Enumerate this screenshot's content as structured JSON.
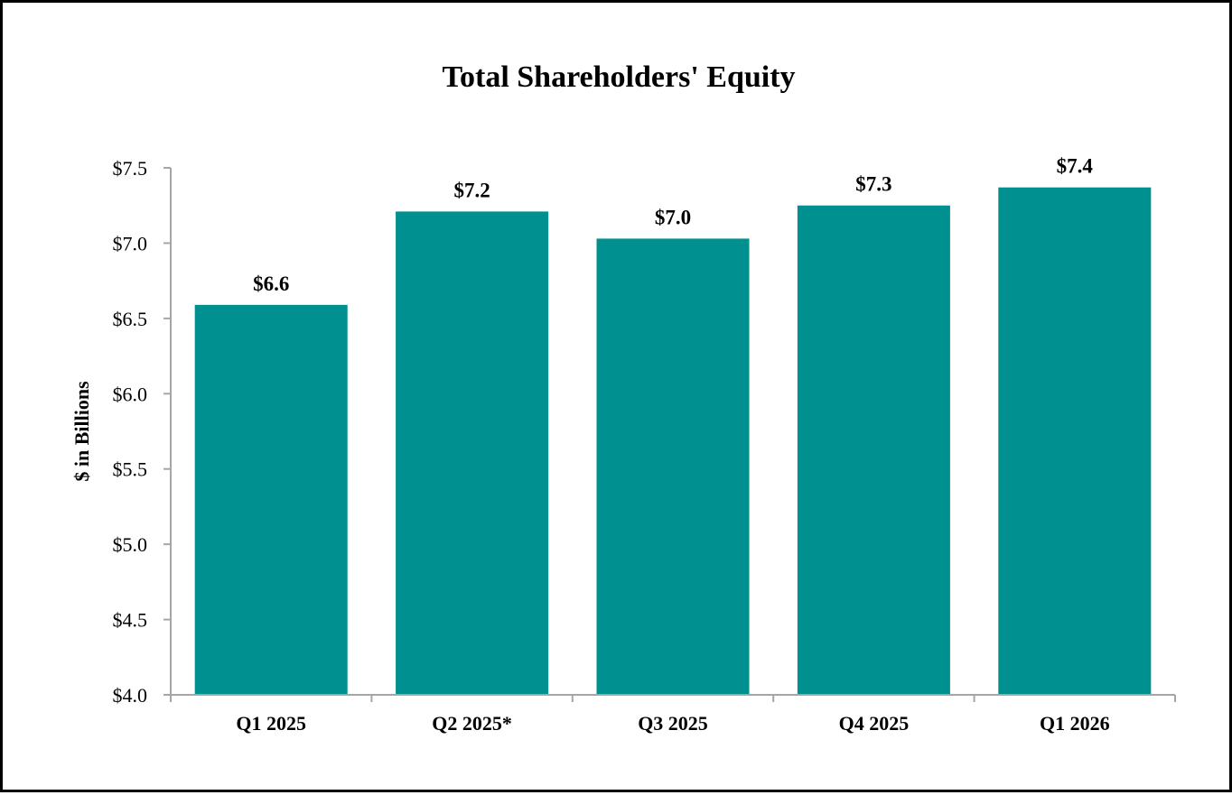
{
  "chart_data": {
    "type": "bar",
    "title": "Total Shareholders' Equity",
    "ylabel": "$ in Billions",
    "xlabel": "",
    "categories": [
      "Q1 2025",
      "Q2 2025*",
      "Q3 2025",
      "Q4 2025",
      "Q1 2026"
    ],
    "values": [
      6.59,
      7.21,
      7.03,
      7.25,
      7.37
    ],
    "data_labels": [
      "$6.6",
      "$7.2",
      "$7.0",
      "$7.3",
      "$7.4"
    ],
    "ylim": [
      4.0,
      7.5
    ],
    "yticks": [
      4.0,
      4.5,
      5.0,
      5.5,
      6.0,
      6.5,
      7.0,
      7.5
    ],
    "ytick_labels": [
      "$4.0",
      "$4.5",
      "$5.0",
      "$5.5",
      "$6.0",
      "$6.5",
      "$7.0",
      "$7.5"
    ],
    "grid": false,
    "legend": "none",
    "bar_color": "#009090",
    "axis_color": "#a6a6a6"
  }
}
